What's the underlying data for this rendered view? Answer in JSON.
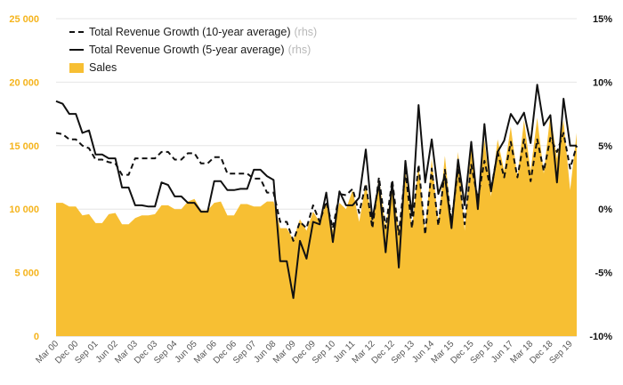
{
  "chart_data": {
    "type": "area",
    "legend": {
      "placement": "top-left",
      "rhs_marker": "(rhs)",
      "entries": [
        {
          "name": "Total Revenue Growth (10-year average)",
          "style": "dashed",
          "axis": "right",
          "color": "#111111"
        },
        {
          "name": "Total Revenue Growth (5-year average)",
          "style": "solid",
          "axis": "right",
          "color": "#111111"
        },
        {
          "name": "Sales",
          "style": "area",
          "axis": "left",
          "color": "#f7bf33"
        }
      ]
    },
    "left_axis": {
      "range": [
        0,
        25000
      ],
      "ticks": [
        0,
        5000,
        10000,
        15000,
        20000,
        25000
      ],
      "tick_labels": [
        "0",
        "5 000",
        "10 000",
        "15 000",
        "20 000",
        "25 000"
      ],
      "color": "#f5b41c"
    },
    "right_axis": {
      "range": [
        -10,
        15
      ],
      "ticks": [
        -10,
        -5,
        0,
        5,
        10,
        15
      ],
      "tick_labels": [
        "-10%",
        "-5%",
        "0%",
        "5%",
        "10%",
        "15%"
      ],
      "color": "#111111"
    },
    "x_tick_labels": [
      "Mar 00",
      "Dec 00",
      "Sep 01",
      "Jun 02",
      "Mar 03",
      "Dec 03",
      "Sep 04",
      "Jun 05",
      "Mar 06",
      "Dec 06",
      "Sep 07",
      "Jun 08",
      "Mar 09",
      "Dec 09",
      "Sep 10",
      "Jun 11",
      "Mar 12",
      "Dec 12",
      "Sep 13",
      "Jun 14",
      "Mar 15",
      "Dec 15",
      "Sep 16",
      "Jun 17",
      "Mar 18",
      "Dec 18",
      "Sep 19"
    ],
    "grid": {
      "horizontal": true,
      "vertical": false
    },
    "x": [
      "Mar 00",
      "Jun 00",
      "Sep 00",
      "Dec 00",
      "Mar 01",
      "Jun 01",
      "Sep 01",
      "Dec 01",
      "Mar 02",
      "Jun 02",
      "Sep 02",
      "Dec 02",
      "Mar 03",
      "Jun 03",
      "Sep 03",
      "Dec 03",
      "Mar 04",
      "Jun 04",
      "Sep 04",
      "Dec 04",
      "Mar 05",
      "Jun 05",
      "Sep 05",
      "Dec 05",
      "Mar 06",
      "Jun 06",
      "Sep 06",
      "Dec 06",
      "Mar 07",
      "Jun 07",
      "Sep 07",
      "Dec 07",
      "Mar 08",
      "Jun 08",
      "Sep 08",
      "Dec 08",
      "Mar 09",
      "Jun 09",
      "Sep 09",
      "Dec 09",
      "Mar 10",
      "Jun 10",
      "Sep 10",
      "Dec 10",
      "Mar 11",
      "Jun 11",
      "Sep 11",
      "Dec 11",
      "Mar 12",
      "Jun 12",
      "Sep 12",
      "Dec 12",
      "Mar 13",
      "Jun 13",
      "Sep 13",
      "Dec 13",
      "Mar 14",
      "Jun 14",
      "Sep 14",
      "Dec 14",
      "Mar 15",
      "Jun 15",
      "Sep 15",
      "Dec 15",
      "Mar 16",
      "Jun 16",
      "Sep 16",
      "Dec 16",
      "Mar 17",
      "Jun 17",
      "Sep 17",
      "Dec 17",
      "Mar 18",
      "Jun 18",
      "Sep 18",
      "Dec 18",
      "Mar 19",
      "Jun 19",
      "Sep 19",
      "Dec 19"
    ],
    "series": [
      {
        "name": "Sales",
        "axis": "left",
        "values": [
          10500,
          10500,
          10200,
          10200,
          9500,
          9600,
          8900,
          8900,
          9600,
          9700,
          8800,
          8800,
          9300,
          9500,
          9500,
          9600,
          10300,
          10300,
          10000,
          10000,
          10600,
          10800,
          9900,
          9900,
          10500,
          10600,
          9500,
          9500,
          10400,
          10400,
          10200,
          10200,
          10600,
          10600,
          8500,
          8500,
          7600,
          9200,
          8300,
          9800,
          9000,
          10500,
          8300,
          10500,
          10000,
          11500,
          9000,
          12000,
          9000,
          12500,
          8500,
          12000,
          8200,
          13000,
          8500,
          13500,
          8200,
          14000,
          8800,
          14200,
          9000,
          14500,
          8300,
          15000,
          10000,
          15500,
          11000,
          15500,
          13000,
          16500,
          12500,
          17000,
          13000,
          17200,
          12800,
          17500,
          14000,
          17000,
          11500,
          16000
        ]
      },
      {
        "name": "Total Revenue Growth (10-year average)",
        "axis": "right",
        "values": [
          6.0,
          5.9,
          5.5,
          5.5,
          5.0,
          4.8,
          3.9,
          3.9,
          3.7,
          3.6,
          2.7,
          2.7,
          4.0,
          4.0,
          4.0,
          4.0,
          4.5,
          4.5,
          3.9,
          3.9,
          4.4,
          4.4,
          3.6,
          3.6,
          4.1,
          4.1,
          2.8,
          2.8,
          2.8,
          2.8,
          2.4,
          2.4,
          1.3,
          1.3,
          -1.0,
          -1.0,
          -2.5,
          -1.0,
          -1.5,
          0.3,
          -1.0,
          0.6,
          -1.5,
          1.2,
          1.1,
          1.6,
          -0.3,
          2.0,
          -1.5,
          2.5,
          -1.5,
          2.3,
          -2.0,
          3.0,
          -1.5,
          3.5,
          -2.0,
          3.2,
          -1.3,
          3.1,
          -1.0,
          3.2,
          -1.2,
          3.5,
          0.8,
          3.8,
          1.5,
          4.5,
          2.5,
          5.3,
          2.5,
          5.5,
          2.2,
          5.5,
          3.0,
          5.6,
          4.5,
          6.0,
          3.2,
          5.0
        ]
      },
      {
        "name": "Total Revenue Growth (5-year average)",
        "axis": "right",
        "values": [
          8.5,
          8.3,
          7.5,
          7.5,
          6.0,
          6.2,
          4.3,
          4.3,
          4.0,
          4.0,
          1.7,
          1.7,
          0.3,
          0.3,
          0.2,
          0.2,
          2.1,
          1.9,
          1.0,
          1.0,
          0.5,
          0.5,
          -0.2,
          -0.2,
          2.2,
          2.2,
          1.5,
          1.5,
          1.6,
          1.6,
          3.1,
          3.1,
          2.6,
          2.3,
          -4.1,
          -4.1,
          -7.0,
          -2.5,
          -3.9,
          -1.0,
          -1.2,
          1.3,
          -2.6,
          1.4,
          0.3,
          0.3,
          0.9,
          4.7,
          -0.8,
          2.0,
          -3.4,
          2.1,
          -4.6,
          3.8,
          -0.5,
          8.2,
          2.1,
          5.5,
          1.2,
          2.6,
          -1.5,
          3.9,
          0.3,
          5.3,
          0.0,
          6.7,
          1.4,
          4.5,
          5.4,
          7.5,
          6.7,
          7.6,
          5.2,
          9.8,
          6.6,
          7.4,
          2.1,
          8.7,
          5.0,
          5.0
        ]
      }
    ]
  }
}
